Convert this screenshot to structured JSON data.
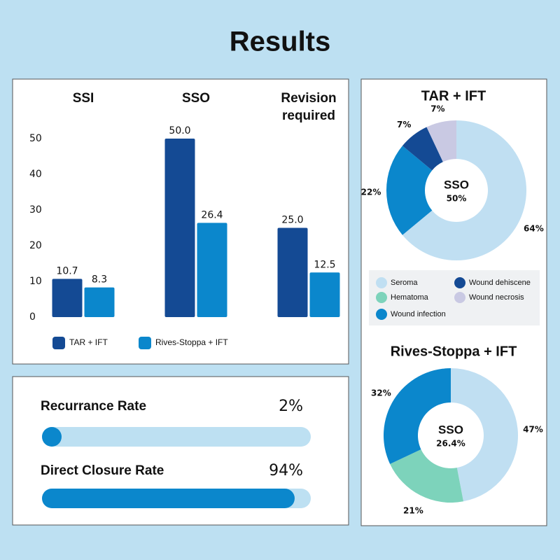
{
  "title": "Results",
  "chart_data": [
    {
      "type": "bar",
      "categories": [
        "SSI",
        "SSO",
        "Revision required"
      ],
      "series": [
        {
          "name": "TAR + IFT",
          "color": "#144a94",
          "values": [
            10.7,
            50.0,
            25.0
          ],
          "value_labels": [
            "10.7",
            "50.0",
            "25.0"
          ]
        },
        {
          "name": "Rives-Stoppa + IFT",
          "color": "#0b87cc",
          "values": [
            8.3,
            26.4,
            12.5
          ],
          "value_labels": [
            "8.3",
            "26.4",
            "12.5"
          ]
        }
      ],
      "ylim": [
        0,
        50
      ],
      "yticks": [
        0,
        10,
        20,
        30,
        40,
        50
      ],
      "grid": false
    },
    {
      "type": "donut",
      "title": "TAR + IFT",
      "center_title": "SSO",
      "center_subtitle": "50%",
      "categories": [
        "Seroma",
        "Wound infection",
        "Wound dehiscene",
        "Wound necrosis"
      ],
      "values": [
        64,
        22,
        7,
        7
      ],
      "value_labels": [
        "64%",
        "22%",
        "7%",
        "7%"
      ],
      "colors": [
        "#c0dff2",
        "#0b87cc",
        "#144a94",
        "#c9c9e3"
      ]
    },
    {
      "type": "donut",
      "title": "Rives-Stoppa + IFT",
      "center_title": "SSO",
      "center_subtitle": "26.4%",
      "categories": [
        "Seroma",
        "Hematoma",
        "Wound infection"
      ],
      "values": [
        47,
        21,
        32
      ],
      "value_labels": [
        "47%",
        "21%",
        "32%"
      ],
      "colors": [
        "#c0dff2",
        "#7dd3bb",
        "#0b87cc"
      ]
    }
  ],
  "legend": [
    {
      "name": "Seroma",
      "color": "#c0dff2"
    },
    {
      "name": "Hematoma",
      "color": "#7dd3bb"
    },
    {
      "name": "Wound infection",
      "color": "#0b87cc"
    },
    {
      "name": "Wound dehiscene",
      "color": "#144a94"
    },
    {
      "name": "Wound necrosis",
      "color": "#c9c9e3"
    }
  ],
  "rates": [
    {
      "label": "Recurrance Rate",
      "value": 2,
      "value_label": "2%"
    },
    {
      "label": "Direct Closure Rate",
      "value": 94,
      "value_label": "94%"
    }
  ]
}
